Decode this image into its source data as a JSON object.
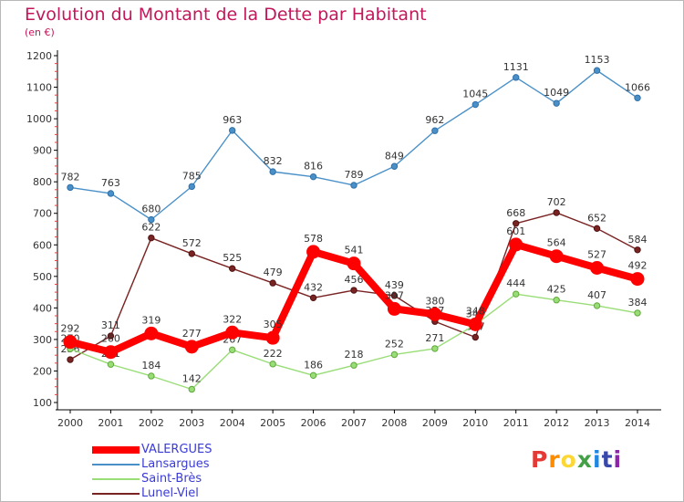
{
  "title": "Evolution du Montant de la Dette par Habitant",
  "subtitle": "(en €)",
  "logo": {
    "letters": [
      {
        "ch": "P",
        "color": "#e53935"
      },
      {
        "ch": "r",
        "color": "#fb8c00"
      },
      {
        "ch": "o",
        "color": "#fdd835"
      },
      {
        "ch": "x",
        "color": "#43a047"
      },
      {
        "ch": "i",
        "color": "#1e88e5"
      },
      {
        "ch": "t",
        "color": "#3949ab"
      },
      {
        "ch": "i",
        "color": "#8e24aa"
      }
    ]
  },
  "chart_data": {
    "type": "line",
    "title": "Evolution du Montant de la Dette par Habitant",
    "subtitle": "(en €)",
    "xlabel": "",
    "ylabel": "",
    "ylim": [
      100,
      1200
    ],
    "yticks": [
      100,
      200,
      300,
      400,
      500,
      600,
      700,
      800,
      900,
      1000,
      1100,
      1200
    ],
    "grid": false,
    "legend": "bottom-left",
    "x": [
      "2000",
      "2001",
      "2002",
      "2003",
      "2004",
      "2005",
      "2006",
      "2007",
      "2008",
      "2009",
      "2010",
      "2011",
      "2012",
      "2013",
      "2014"
    ],
    "series": [
      {
        "name": "VALERGUES",
        "color": "#ff0000",
        "style": "thick",
        "values": [
          292,
          260,
          319,
          277,
          322,
          305,
          578,
          541,
          397,
          380,
          348,
          601,
          564,
          527,
          492
        ]
      },
      {
        "name": "Lansargues",
        "color": "#4a90c8",
        "style": "thin",
        "values": [
          782,
          763,
          680,
          785,
          963,
          832,
          816,
          789,
          849,
          962,
          1045,
          1131,
          1049,
          1153,
          1066
        ]
      },
      {
        "name": "Saint-Brès",
        "color": "#99dd77",
        "style": "thin",
        "values": [
          270,
          221,
          184,
          142,
          267,
          222,
          186,
          218,
          252,
          271,
          347,
          444,
          425,
          407,
          384
        ]
      },
      {
        "name": "Lunel-Viel",
        "color": "#7a2323",
        "style": "thin",
        "values": [
          236,
          311,
          622,
          572,
          525,
          479,
          432,
          456,
          439,
          357,
          307,
          668,
          702,
          652,
          584
        ]
      }
    ]
  }
}
